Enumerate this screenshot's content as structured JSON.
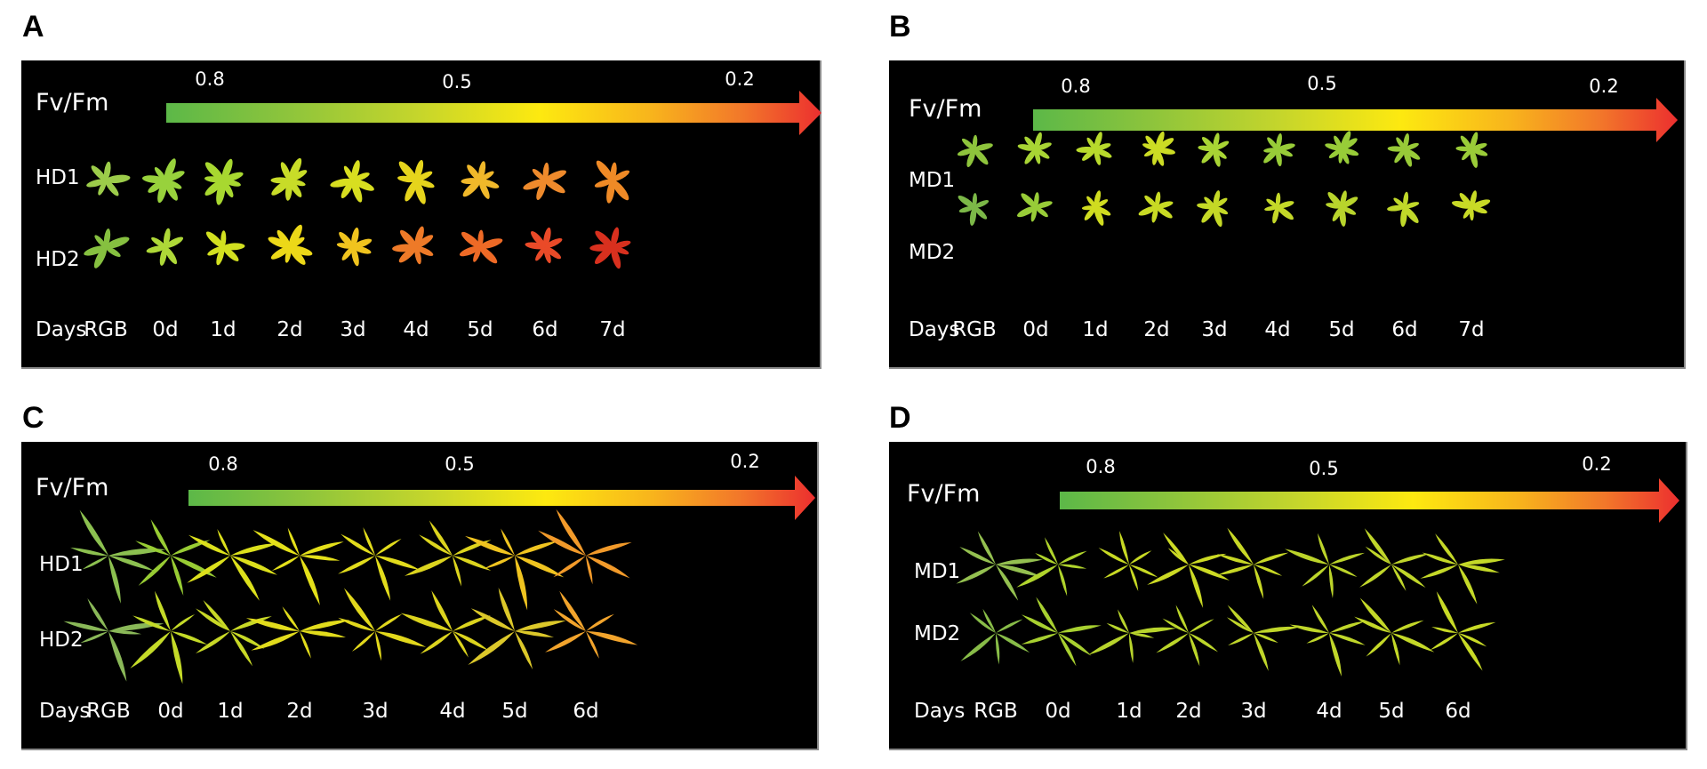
{
  "figure": {
    "colorbar": {
      "title": "Fv/Fm",
      "ticks": [
        "0.8",
        "0.5",
        "0.2"
      ],
      "tick_values": [
        0.8,
        0.5,
        0.2
      ],
      "gradient_stops": [
        "#5cb848",
        "#8cc43c",
        "#c4d52c",
        "#fde910",
        "#f8b41c",
        "#f2772a",
        "#ec2f2f"
      ]
    },
    "panels": [
      {
        "letter": "A",
        "plant_type": "rosette",
        "rows": [
          {
            "label": "HD1",
            "colors": [
              "#9ccc4a",
              "#98d23c",
              "#a8d830",
              "#c8dc28",
              "#d8de20",
              "#e6d41c",
              "#f0b82a",
              "#ee8a2c",
              "#ef8a26"
            ]
          },
          {
            "label": "HD2",
            "colors": [
              "#86c040",
              "#aed838",
              "#d2e020",
              "#ecd818",
              "#f0c41e",
              "#ee7a28",
              "#ee6a26",
              "#ea4a28",
              "#d8301e"
            ]
          }
        ],
        "days_label": "Days",
        "columns": [
          "RGB",
          "0d",
          "1d",
          "2d",
          "3d",
          "4d",
          "5d",
          "6d",
          "7d"
        ]
      },
      {
        "letter": "B",
        "plant_type": "rosette",
        "rows": [
          {
            "label": "MD1",
            "colors": [
              "#8ec43c",
              "#a8d434",
              "#b8da2c",
              "#ccdc24",
              "#a8d434",
              "#98cc38",
              "#98cc38",
              "#98ca38",
              "#9acc38"
            ]
          },
          {
            "label": "MD2",
            "colors": [
              "#7cb848",
              "#98cc38",
              "#d0dc20",
              "#c8da24",
              "#c4d826",
              "#c4d828",
              "#b8d42c",
              "#c0d82a",
              "#c8da26"
            ]
          }
        ],
        "days_label": "Days",
        "columns": [
          "RGB",
          "0d",
          "1d",
          "2d",
          "3d",
          "4d",
          "5d",
          "6d",
          "7d"
        ]
      },
      {
        "letter": "C",
        "plant_type": "grass",
        "rows": [
          {
            "label": "HD1",
            "colors": [
              "#8cc050",
              "#98cc34",
              "#dce01c",
              "#e4e01a",
              "#e2dc1c",
              "#dcd41e",
              "#f0c420",
              "#f29a2a"
            ]
          },
          {
            "label": "HD2",
            "colors": [
              "#8ab858",
              "#c4da28",
              "#c8d826",
              "#e2dc1c",
              "#e2d81c",
              "#dcd41e",
              "#dcc82a",
              "#f2a42c"
            ]
          }
        ],
        "days_label": "Days",
        "columns": [
          "RGB",
          "0d",
          "1d",
          "2d",
          "3d",
          "4d",
          "5d",
          "6d"
        ]
      },
      {
        "letter": "D",
        "plant_type": "grass",
        "rows": [
          {
            "label": "MD1",
            "colors": [
              "#94c050",
              "#b0d42c",
              "#c8da24",
              "#ccda24",
              "#c8d826",
              "#bcd42a",
              "#c0d62a",
              "#c4d828"
            ]
          },
          {
            "label": "MD2",
            "colors": [
              "#88bc48",
              "#a8d030",
              "#b8d42c",
              "#bcd62a",
              "#c0d62a",
              "#c0d62a",
              "#c4d828",
              "#c8da26"
            ]
          }
        ],
        "days_label": "Days",
        "columns": [
          "RGB",
          "0d",
          "1d",
          "2d",
          "3d",
          "4d",
          "5d",
          "6d"
        ]
      }
    ]
  }
}
